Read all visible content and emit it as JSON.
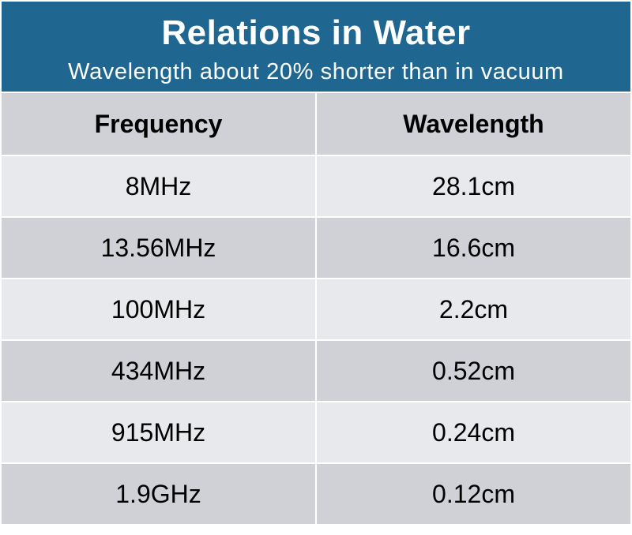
{
  "header": {
    "title": "Relations in Water",
    "subtitle": "Wavelength about 20% shorter than in vacuum"
  },
  "table": {
    "columns": [
      "Frequency",
      "Wavelength"
    ],
    "rows": [
      [
        "8MHz",
        "28.1cm"
      ],
      [
        "13.56MHz",
        "16.6cm"
      ],
      [
        "100MHz",
        "2.2cm"
      ],
      [
        "434MHz",
        "0.52cm"
      ],
      [
        "915MHz",
        "0.24cm"
      ],
      [
        "1.9GHz",
        "0.12cm"
      ]
    ]
  },
  "colors": {
    "header_bg": "#1f6690",
    "header_text": "#ffffff",
    "row_dark": "#cfd1d6",
    "row_light": "#e8e9ec"
  }
}
